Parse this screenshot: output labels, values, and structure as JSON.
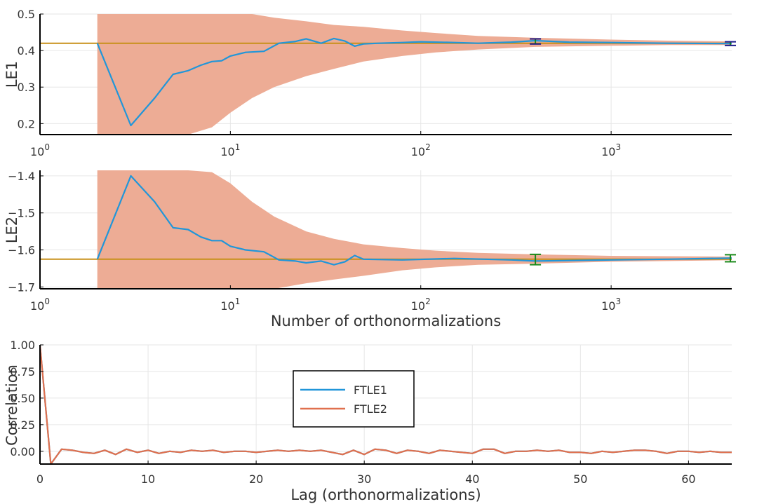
{
  "colors": {
    "series_blue": "#2196d9",
    "series_orange": "#e0704e",
    "ribbon": "#edac95",
    "reference": "#c8901a",
    "errorbar_green": "#1a8a1a",
    "errorbar_navy": "#1a1a8a",
    "grid": "#e6e6e6",
    "axis": "#000000"
  },
  "chart_data": [
    {
      "type": "line",
      "xscale": "log",
      "xlim": [
        1,
        4300
      ],
      "ylim": [
        0.17,
        0.5
      ],
      "ylabel": "LE1",
      "xlabel": "",
      "grid": true,
      "x_ticks": [
        "10^0",
        "10^1",
        "10^2",
        "10^3"
      ],
      "y_ticks": [
        "0.5",
        "0.4",
        "0.3",
        "0.2"
      ],
      "y_tick_values": [
        0.5,
        0.4,
        0.3,
        0.2
      ],
      "reference_value": 0.42,
      "series": [
        {
          "values": [
            [
              2,
              0.42
            ],
            [
              3,
              0.195
            ],
            [
              4,
              0.27
            ],
            [
              5,
              0.335
            ],
            [
              6,
              0.345
            ],
            [
              7,
              0.36
            ],
            [
              8,
              0.37
            ],
            [
              9,
              0.372
            ],
            [
              10,
              0.385
            ],
            [
              12,
              0.395
            ],
            [
              15,
              0.398
            ],
            [
              18,
              0.42
            ],
            [
              22,
              0.425
            ],
            [
              25,
              0.432
            ],
            [
              30,
              0.42
            ],
            [
              35,
              0.433
            ],
            [
              40,
              0.426
            ],
            [
              45,
              0.412
            ],
            [
              50,
              0.418
            ],
            [
              60,
              0.42
            ],
            [
              80,
              0.422
            ],
            [
              100,
              0.424
            ],
            [
              150,
              0.422
            ],
            [
              200,
              0.42
            ],
            [
              300,
              0.423
            ],
            [
              400,
              0.427
            ],
            [
              600,
              0.423
            ],
            [
              1000,
              0.422
            ],
            [
              2000,
              0.42
            ],
            [
              4300,
              0.419
            ]
          ]
        }
      ],
      "ribbon": [
        [
          2,
          0.17,
          0.5
        ],
        [
          3,
          0.17,
          0.5
        ],
        [
          4,
          0.17,
          0.5
        ],
        [
          6,
          0.17,
          0.5
        ],
        [
          8,
          0.19,
          0.5
        ],
        [
          10,
          0.23,
          0.5
        ],
        [
          13,
          0.27,
          0.5
        ],
        [
          17,
          0.3,
          0.49
        ],
        [
          25,
          0.33,
          0.48
        ],
        [
          35,
          0.35,
          0.47
        ],
        [
          50,
          0.37,
          0.465
        ],
        [
          80,
          0.385,
          0.455
        ],
        [
          120,
          0.395,
          0.448
        ],
        [
          200,
          0.403,
          0.44
        ],
        [
          400,
          0.41,
          0.435
        ],
        [
          1000,
          0.413,
          0.43
        ],
        [
          2000,
          0.415,
          0.427
        ],
        [
          4300,
          0.415,
          0.425
        ]
      ],
      "error_bars": [
        {
          "x": 400,
          "lo": 0.418,
          "hi": 0.432
        },
        {
          "x": 4300,
          "lo": 0.414,
          "hi": 0.424
        }
      ]
    },
    {
      "type": "line",
      "xscale": "log",
      "xlim": [
        1,
        4300
      ],
      "ylim": [
        -1.705,
        -1.385
      ],
      "ylabel": "LE2",
      "xlabel": "Number of orthonormalizations",
      "grid": true,
      "x_ticks": [
        "10^0",
        "10^1",
        "10^2",
        "10^3"
      ],
      "y_ticks": [
        "−1.4",
        "−1.5",
        "−1.6",
        "−1.7"
      ],
      "y_tick_values": [
        -1.4,
        -1.5,
        -1.6,
        -1.7
      ],
      "reference_value": -1.625,
      "series": [
        {
          "values": [
            [
              2,
              -1.625
            ],
            [
              3,
              -1.4
            ],
            [
              4,
              -1.47
            ],
            [
              5,
              -1.54
            ],
            [
              6,
              -1.545
            ],
            [
              7,
              -1.565
            ],
            [
              8,
              -1.575
            ],
            [
              9,
              -1.575
            ],
            [
              10,
              -1.59
            ],
            [
              12,
              -1.6
            ],
            [
              15,
              -1.605
            ],
            [
              18,
              -1.627
            ],
            [
              22,
              -1.63
            ],
            [
              25,
              -1.635
            ],
            [
              30,
              -1.63
            ],
            [
              35,
              -1.64
            ],
            [
              40,
              -1.632
            ],
            [
              45,
              -1.615
            ],
            [
              50,
              -1.625
            ],
            [
              80,
              -1.627
            ],
            [
              150,
              -1.623
            ],
            [
              300,
              -1.627
            ],
            [
              400,
              -1.63
            ],
            [
              1000,
              -1.627
            ],
            [
              2000,
              -1.625
            ],
            [
              4300,
              -1.622
            ]
          ]
        }
      ],
      "ribbon": [
        [
          2,
          -1.705,
          -1.385
        ],
        [
          6,
          -1.705,
          -1.385
        ],
        [
          8,
          -1.705,
          -1.39
        ],
        [
          10,
          -1.705,
          -1.42
        ],
        [
          13,
          -1.705,
          -1.47
        ],
        [
          17,
          -1.705,
          -1.51
        ],
        [
          25,
          -1.69,
          -1.55
        ],
        [
          35,
          -1.68,
          -1.57
        ],
        [
          50,
          -1.67,
          -1.585
        ],
        [
          80,
          -1.655,
          -1.595
        ],
        [
          120,
          -1.647,
          -1.602
        ],
        [
          200,
          -1.64,
          -1.608
        ],
        [
          400,
          -1.637,
          -1.612
        ],
        [
          1000,
          -1.632,
          -1.616
        ],
        [
          4300,
          -1.628,
          -1.618
        ]
      ],
      "error_bars": [
        {
          "x": 400,
          "lo": -1.64,
          "hi": -1.612
        },
        {
          "x": 4300,
          "lo": -1.632,
          "hi": -1.613
        }
      ]
    },
    {
      "type": "line",
      "xlim": [
        0,
        64
      ],
      "ylim": [
        -0.12,
        1.0
      ],
      "xlabel": "Lag (orthonormalizations)",
      "ylabel": "Correlation",
      "grid": true,
      "x_ticks": [
        "0",
        "10",
        "20",
        "30",
        "40",
        "50",
        "60"
      ],
      "x_tick_values": [
        0,
        10,
        20,
        30,
        40,
        50,
        60
      ],
      "y_ticks": [
        "1.00",
        "0.75",
        "0.50",
        "0.25",
        "0.00"
      ],
      "y_tick_values": [
        1.0,
        0.75,
        0.5,
        0.25,
        0.0
      ],
      "legend_position": "center",
      "series": [
        {
          "name": "FTLE1",
          "values": [
            1.0,
            -0.12,
            0.02,
            0.01,
            -0.01,
            -0.02,
            0.01,
            -0.03,
            0.02,
            -0.01,
            0.01,
            -0.02,
            0.0,
            -0.01,
            0.01,
            0.0,
            0.01,
            -0.01,
            0.0,
            0.0,
            -0.01,
            0.0,
            0.01,
            0.0,
            0.01,
            0.0,
            0.01,
            -0.01,
            -0.03,
            0.01,
            -0.03,
            0.02,
            0.01,
            -0.02,
            0.01,
            0.0,
            -0.02,
            0.01,
            0.0,
            -0.01,
            -0.02,
            0.02,
            0.02,
            -0.02,
            0.0,
            0.0,
            0.01,
            0.0,
            0.01,
            -0.01,
            -0.01,
            -0.02,
            0.0,
            -0.01,
            0.0,
            0.01,
            0.01,
            0.0,
            -0.02,
            0.0,
            0.0,
            -0.01,
            0.0,
            -0.01,
            -0.01
          ]
        },
        {
          "name": "FTLE2",
          "values": [
            1.0,
            -0.12,
            0.02,
            0.01,
            -0.01,
            -0.02,
            0.01,
            -0.03,
            0.02,
            -0.01,
            0.01,
            -0.02,
            0.0,
            -0.01,
            0.01,
            0.0,
            0.01,
            -0.01,
            0.0,
            0.0,
            -0.01,
            0.0,
            0.01,
            0.0,
            0.01,
            0.0,
            0.01,
            -0.01,
            -0.03,
            0.01,
            -0.03,
            0.02,
            0.01,
            -0.02,
            0.01,
            0.0,
            -0.02,
            0.01,
            0.0,
            -0.01,
            -0.02,
            0.02,
            0.02,
            -0.02,
            0.0,
            0.0,
            0.01,
            0.0,
            0.01,
            -0.01,
            -0.01,
            -0.02,
            0.0,
            -0.01,
            0.0,
            0.01,
            0.01,
            0.0,
            -0.02,
            0.0,
            0.0,
            -0.01,
            0.0,
            -0.01,
            -0.01
          ]
        }
      ]
    }
  ]
}
